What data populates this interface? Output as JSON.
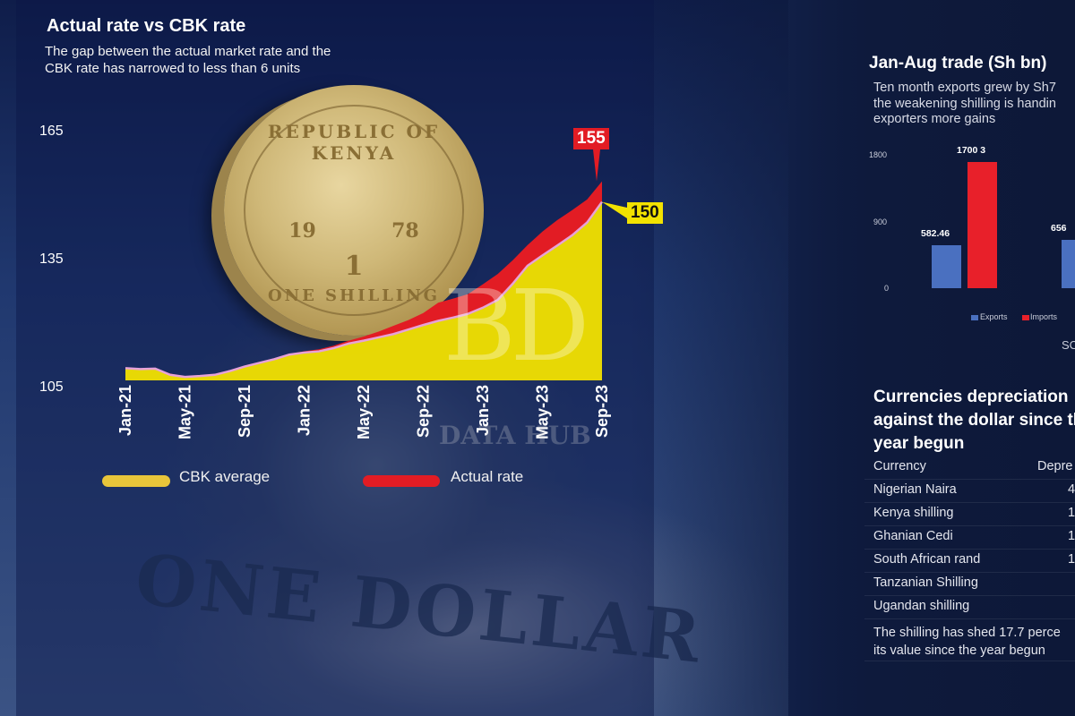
{
  "colors": {
    "cbk": "#f2e200",
    "actual": "#e21c24",
    "exports": "#4a70c0",
    "imports": "#e8202a",
    "background": "#0e1a3c"
  },
  "coin_text": [
    "REPUBLIC OF KENYA",
    "19",
    "78",
    "1",
    "ONE SHILLING"
  ],
  "watermark_text": [
    "BD",
    "DATA HUB"
  ],
  "background_text": "ONE DOLLAR",
  "chart_data": [
    {
      "type": "area",
      "title": "Actual rate vs CBK rate",
      "subtitle": [
        "The gap between the actual market rate and the",
        "CBK rate has narrowed to less than 6 units"
      ],
      "y_ticks": [
        "165",
        "135",
        "105"
      ],
      "ylim": [
        105,
        165
      ],
      "x_tick_labels": [
        "Jan-21",
        "May-21",
        "Sep-21",
        "Jan-22",
        "May-22",
        "Sep-22",
        "Jan-23",
        "May-23",
        "Sep-23"
      ],
      "categories": [
        "Jan-21",
        "Feb-21",
        "Mar-21",
        "Apr-21",
        "May-21",
        "Jun-21",
        "Jul-21",
        "Aug-21",
        "Sep-21",
        "Oct-21",
        "Nov-21",
        "Dec-21",
        "Jan-22",
        "Feb-22",
        "Mar-22",
        "Apr-22",
        "May-22",
        "Jun-22",
        "Jul-22",
        "Aug-22",
        "Sep-22",
        "Oct-22",
        "Nov-22",
        "Dec-22",
        "Jan-23",
        "Feb-23",
        "Mar-23",
        "Apr-23",
        "May-23",
        "Jun-23",
        "Jul-23",
        "Aug-23",
        "Sep-23"
      ],
      "series": [
        {
          "name": "Actual rate",
          "values": [
            109.8,
            109.5,
            109.6,
            108.3,
            107.6,
            107.8,
            108.2,
            109.0,
            110.2,
            111.1,
            112.0,
            113.1,
            113.7,
            114.2,
            115.1,
            116.3,
            117.3,
            118.5,
            119.9,
            121.3,
            123.0,
            125.5,
            126.5,
            127.6,
            130.0,
            132.5,
            135.8,
            139.5,
            142.8,
            145.6,
            148.0,
            150.6,
            155
          ]
        },
        {
          "name": "CBK average",
          "values": [
            109.6,
            109.4,
            109.5,
            108.0,
            107.5,
            107.7,
            108.0,
            108.9,
            110.0,
            110.9,
            111.8,
            112.9,
            113.4,
            113.7,
            114.5,
            115.6,
            116.3,
            117.1,
            117.9,
            119.0,
            120.1,
            121.1,
            121.9,
            122.8,
            124.3,
            126.2,
            130.1,
            134.5,
            137.0,
            139.4,
            141.9,
            145.0,
            150
          ]
        }
      ],
      "end_labels": {
        "actual": "155",
        "cbk": "150"
      },
      "legend": [
        {
          "label": "CBK average",
          "color": "#e8c53a"
        },
        {
          "label": "Actual rate",
          "color": "#e21c24"
        }
      ],
      "legend_placement": "bottom"
    },
    {
      "type": "bar",
      "title": "Jan-Aug trade (Sh bn)",
      "subtitle": [
        "Ten month exports grew by Sh7",
        "the weakening shilling is handin",
        "exporters more gains"
      ],
      "y_ticks": [
        "1800",
        "900",
        "0"
      ],
      "ylim": [
        0,
        1800
      ],
      "series": [
        {
          "name": "Exports",
          "values": [
            582.46,
            656
          ]
        },
        {
          "name": "Imports",
          "values": [
            1700.3
          ]
        }
      ],
      "data_labels": [
        "582.46",
        "1700 3",
        "656"
      ],
      "legend": [
        "Exports",
        "Imports"
      ],
      "legend_placement": "bottom",
      "source_label": "SC"
    },
    {
      "type": "table",
      "title": [
        "Currencies  depreciation",
        "against the dollar since th",
        "year begun"
      ],
      "columns": [
        "Currency",
        "Depre"
      ],
      "rows": [
        [
          "Nigerian Naira",
          "4"
        ],
        [
          "Kenya shilling",
          "1"
        ],
        [
          "Ghanian Cedi",
          "1"
        ],
        [
          "South African rand",
          "1"
        ],
        [
          "Tanzanian Shilling",
          ""
        ],
        [
          "Ugandan shilling",
          ""
        ]
      ],
      "note": [
        "The shilling has shed 17.7 perce",
        "its value since the year begun"
      ]
    }
  ]
}
